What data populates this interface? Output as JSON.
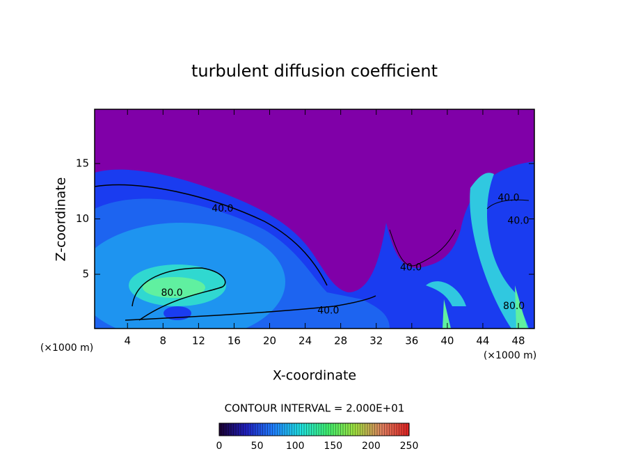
{
  "chart_data": {
    "type": "contour",
    "title": "turbulent diffusion coefficient",
    "xlabel": "X-coordinate",
    "ylabel": "Z-coordinate",
    "xunit": "(×1000 m)",
    "xunit_right": "(×1000 m)",
    "xlim": [
      0.3,
      49.8
    ],
    "xticks": [
      4,
      8,
      12,
      16,
      20,
      24,
      28,
      32,
      36,
      40,
      44,
      48
    ],
    "ylim": [
      0.1,
      19.9
    ],
    "yticks": [
      5,
      10,
      15
    ],
    "contour_interval_label": "CONTOUR INTERVAL = 2.000E+01",
    "contour_labels": [
      {
        "label": "40.0",
        "x": 14.7,
        "y": 10.9
      },
      {
        "label": "80.0",
        "x": 9.0,
        "y": 3.3
      },
      {
        "label": "40.0",
        "x": 26.6,
        "y": 1.7
      },
      {
        "label": "40.0",
        "x": 46.9,
        "y": 11.9
      },
      {
        "label": "40.0",
        "x": 48.0,
        "y": 9.8
      },
      {
        "label": "40.0",
        "x": 35.9,
        "y": 5.6
      },
      {
        "label": "80.0",
        "x": 47.5,
        "y": 2.1
      }
    ],
    "clim": [
      0,
      250
    ],
    "cticks": [
      0,
      50,
      100,
      150,
      200,
      250
    ],
    "colormap": [
      "#1a0030",
      "#2020c0",
      "#2080ff",
      "#20e0e0",
      "#40f070",
      "#a0e040",
      "#e08060",
      "#e02020"
    ]
  }
}
